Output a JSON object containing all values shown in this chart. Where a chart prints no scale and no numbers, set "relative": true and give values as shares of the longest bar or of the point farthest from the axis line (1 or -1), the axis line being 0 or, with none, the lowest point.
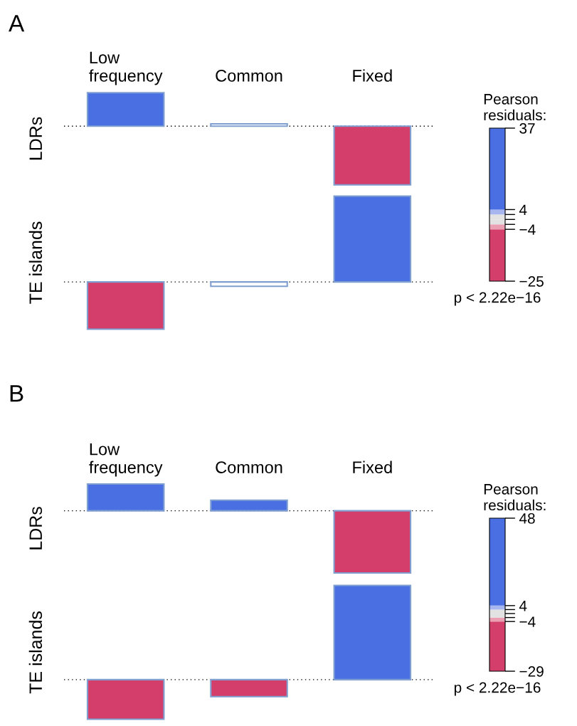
{
  "chart_data": [
    {
      "type": "bar",
      "title": "A",
      "relative": true,
      "categories": [
        "Low\nfrequency",
        "Common",
        "Fixed"
      ],
      "series": [
        {
          "name": "LDRs",
          "values": [
            0.57,
            0.04,
            -1
          ],
          "colors": [
            "#4a6fe3",
            "#ffffff",
            "#d33f6a"
          ]
        }
      ],
      "clabel": "Pearson\nresiduals:",
      "clim": [
        -25,
        37
      ],
      "cticks": [
        37,
        4,
        {
          "value": 2,
          "label": null
        },
        {
          "value": 0,
          "label": null
        },
        {
          "value": -2,
          "label": null
        },
        {
          "value": -4,
          "label": "−4"
        },
        {
          "value": -25,
          "label": "−25"
        }
      ],
      "ref_lines": [
        {
          "axis": "y",
          "value": 0,
          "color": "#000000",
          "line_style": "dotted"
        }
      ],
      "annotations": [
        "p < 2.22e−16"
      ]
    },
    {
      "type": "bar",
      "relative": true,
      "categories": [
        null,
        null,
        null
      ],
      "series": [
        {
          "name": "TE islands",
          "values": [
            -0.55,
            -0.05,
            1
          ],
          "colors": [
            "#d33f6a",
            "#ffffff",
            "#4a6fe3"
          ]
        }
      ],
      "ref_lines": [
        {
          "axis": "y",
          "value": 0,
          "color": "#000000",
          "line_style": "dotted"
        }
      ]
    },
    {
      "type": "bar",
      "title": "B",
      "relative": true,
      "categories": [
        "Low\nfrequency",
        "Common",
        "Fixed"
      ],
      "series": [
        {
          "name": "LDRs",
          "values": [
            0.43,
            0.17,
            -1
          ],
          "colors": [
            "#4a6fe3",
            "#4a6fe3",
            "#d33f6a"
          ]
        }
      ],
      "clabel": "Pearson\nresiduals:",
      "clim": [
        -29,
        48
      ],
      "cticks": [
        48,
        4,
        {
          "value": 2,
          "label": null
        },
        {
          "value": 0,
          "label": null
        },
        {
          "value": -2,
          "label": null
        },
        {
          "value": -4,
          "label": "−4"
        },
        {
          "value": -29,
          "label": "−29"
        }
      ],
      "ref_lines": [
        {
          "axis": "y",
          "value": 0,
          "color": "#000000",
          "line_style": "dotted"
        }
      ],
      "annotations": [
        "p < 2.22e−16"
      ]
    },
    {
      "type": "bar",
      "relative": true,
      "categories": [
        null,
        null,
        null
      ],
      "series": [
        {
          "name": "TE islands",
          "values": [
            -0.42,
            -0.18,
            1
          ],
          "colors": [
            "#d33f6a",
            "#d33f6a",
            "#4a6fe3"
          ]
        }
      ],
      "ref_lines": [
        {
          "axis": "y",
          "value": 0,
          "color": "#000000",
          "line_style": "dotted"
        }
      ]
    }
  ]
}
